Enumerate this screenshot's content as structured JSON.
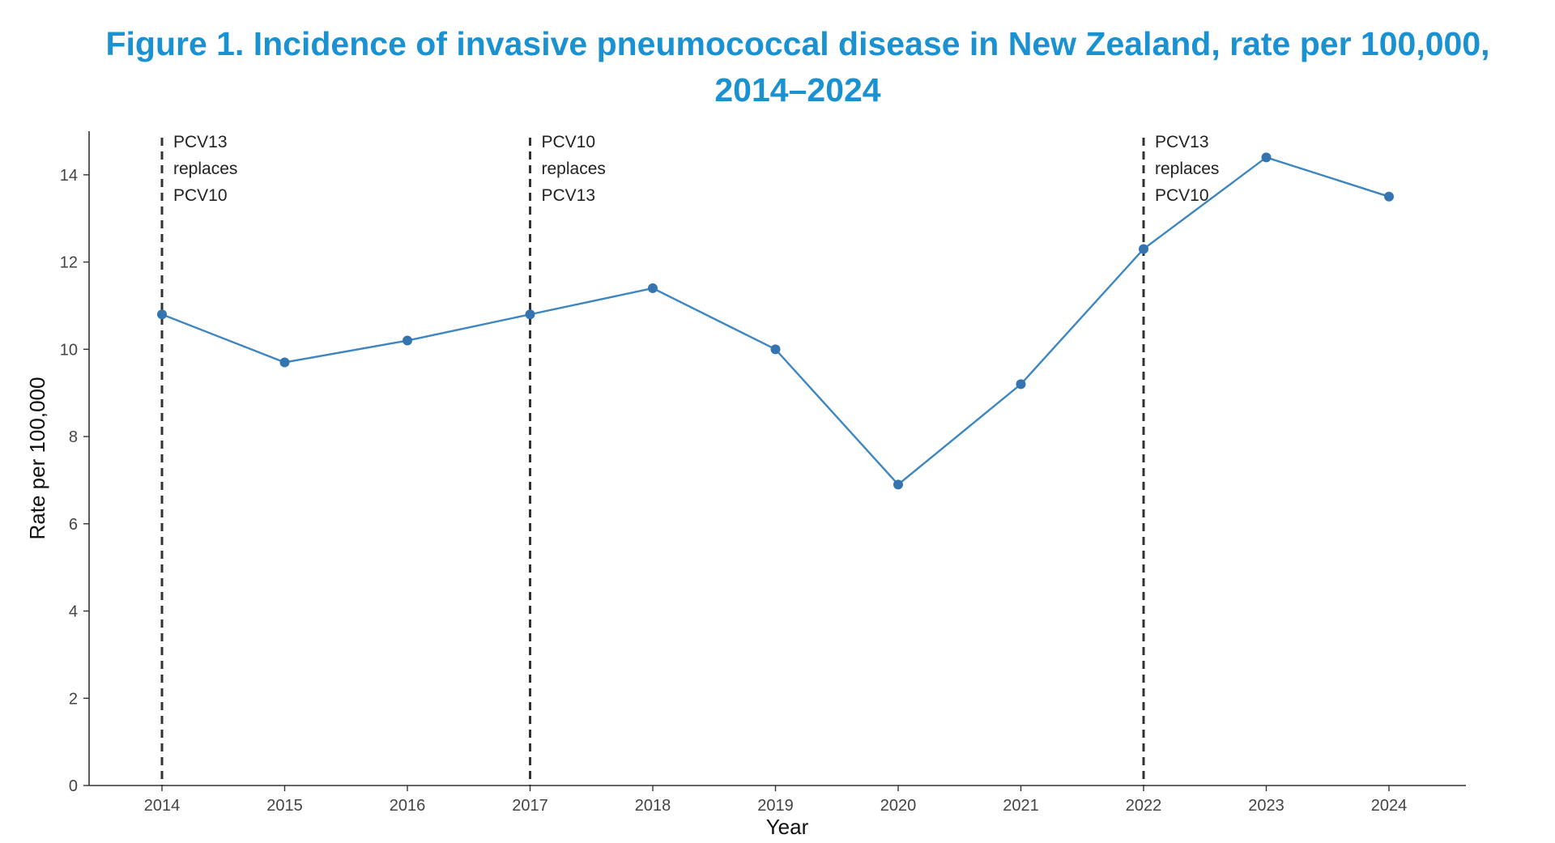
{
  "chart_data": {
    "type": "line",
    "title_lines": [
      "Figure 1. Incidence of invasive pneumococcal disease in New Zealand, rate per 100,000,",
      "2014–2024"
    ],
    "xlabel": "Year",
    "ylabel": "Rate per 100,000",
    "x": [
      "2014",
      "2015",
      "2016",
      "2017",
      "2018",
      "2019",
      "2020",
      "2021",
      "2022",
      "2023",
      "2024"
    ],
    "series": [
      {
        "values": [
          10.8,
          9.7,
          10.2,
          10.8,
          11.4,
          10.0,
          6.9,
          9.2,
          12.3,
          14.4,
          13.5
        ]
      }
    ],
    "ylim": [
      0,
      15
    ],
    "yticks": [
      "0",
      "2",
      "4",
      "6",
      "8",
      "10",
      "12",
      "14"
    ],
    "grid": false,
    "vlines": [
      {
        "x": "2014",
        "label_lines": [
          "PCV13",
          "replaces",
          "PCV10"
        ]
      },
      {
        "x": "2017",
        "label_lines": [
          "PCV10",
          "replaces",
          "PCV13"
        ]
      },
      {
        "x": "2022",
        "label_lines": [
          "PCV13",
          "replaces",
          "PCV10"
        ]
      }
    ],
    "colors": {
      "title": "#1a91d1",
      "line": "#3d86c0",
      "points": "#3474b0",
      "vline": "#333333"
    }
  }
}
